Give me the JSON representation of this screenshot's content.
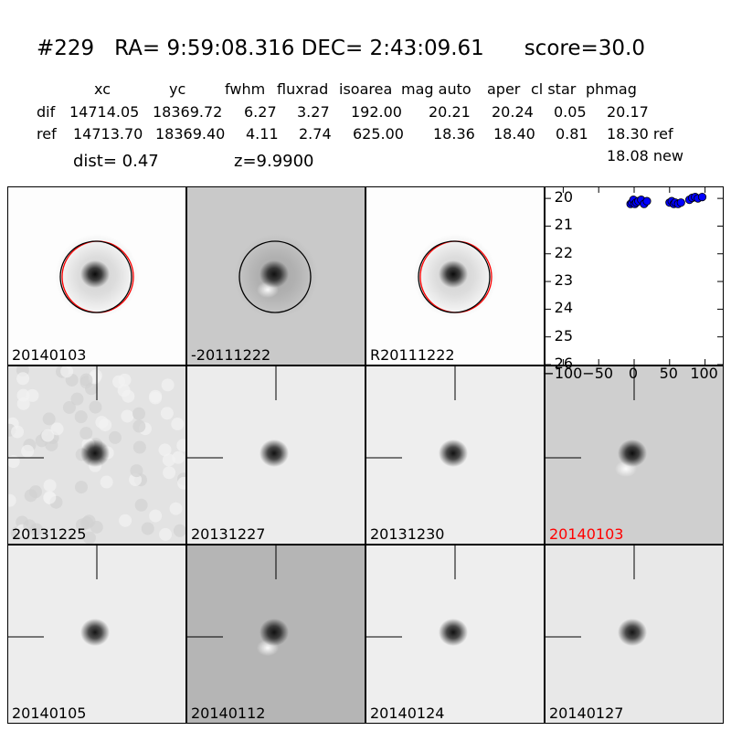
{
  "header": {
    "id": "#229",
    "ra": "RA= 9:59:08.316",
    "dec": "DEC= 2:43:09.61",
    "score": "score=30.0"
  },
  "stats": {
    "columns": [
      "xc",
      "yc",
      "fwhm",
      "fluxrad",
      "isoarea",
      "mag auto",
      "aper",
      "cl star",
      "phmag"
    ],
    "rows": [
      {
        "label": "dif",
        "values": [
          "14714.05",
          "18369.72",
          "6.27",
          "3.27",
          "192.00",
          "20.21",
          "20.24",
          "0.05",
          "20.17"
        ]
      },
      {
        "label": "ref",
        "values": [
          "14713.70",
          "18369.40",
          "4.11",
          "2.74",
          "625.00",
          "18.36",
          "18.40",
          "0.81",
          "18.30 ref"
        ]
      }
    ],
    "extra_phmag": "18.08 new"
  },
  "meta": {
    "dist": "dist=  0.47",
    "z": "z=9.9900"
  },
  "panels": [
    {
      "label": "20140103",
      "bg": "#fdfdfd",
      "blob": "#0a0a0a",
      "circle": true,
      "red_circle": true,
      "crosshair": false,
      "red_label": false,
      "dipole": false
    },
    {
      "label": "-20111222",
      "bg": "#c9c9c9",
      "blob": "#111111",
      "circle": true,
      "red_circle": false,
      "crosshair": false,
      "red_label": false,
      "dipole": true
    },
    {
      "label": "R20111222",
      "bg": "#fdfdfd",
      "blob": "#0a0a0a",
      "circle": true,
      "red_circle": true,
      "crosshair": false,
      "red_label": false,
      "dipole": false
    },
    {
      "label": "20131225",
      "bg": "#e3e3e3",
      "blob": "#111111",
      "circle": false,
      "red_circle": false,
      "crosshair": true,
      "red_label": false,
      "dipole": false,
      "noisy": true
    },
    {
      "label": "20131227",
      "bg": "#ececec",
      "blob": "#111111",
      "circle": false,
      "red_circle": false,
      "crosshair": true,
      "red_label": false,
      "dipole": false
    },
    {
      "label": "20131230",
      "bg": "#eeeeee",
      "blob": "#111111",
      "circle": false,
      "red_circle": false,
      "crosshair": true,
      "red_label": false,
      "dipole": false
    },
    {
      "label": "20140103",
      "bg": "#cfcfcf",
      "blob": "#0d0d0d",
      "circle": false,
      "red_circle": false,
      "crosshair": true,
      "red_label": true,
      "dipole": true
    },
    {
      "label": "20140105",
      "bg": "#ededed",
      "blob": "#151515",
      "circle": false,
      "red_circle": false,
      "crosshair": true,
      "red_label": false,
      "dipole": false
    },
    {
      "label": "20140112",
      "bg": "#b5b5b5",
      "blob": "#111111",
      "circle": false,
      "red_circle": false,
      "crosshair": true,
      "red_label": false,
      "dipole": true
    },
    {
      "label": "20140124",
      "bg": "#eeeeee",
      "blob": "#111111",
      "circle": false,
      "red_circle": false,
      "crosshair": true,
      "red_label": false,
      "dipole": false
    },
    {
      "label": "20140127",
      "bg": "#e8e8e8",
      "blob": "#151515",
      "circle": false,
      "red_circle": false,
      "crosshair": true,
      "red_label": false,
      "dipole": false
    }
  ],
  "chart_data": {
    "type": "scatter",
    "xlim": [
      -125,
      125
    ],
    "ylim": [
      26,
      19.6
    ],
    "y_inverted": true,
    "xticks": [
      -100,
      -50,
      0,
      50,
      100
    ],
    "xtick_labels": [
      "−100",
      "−50",
      "0",
      "50",
      "100"
    ],
    "yticks": [
      20,
      21,
      22,
      23,
      24,
      25,
      26
    ],
    "ytick_labels": [
      "20",
      "21",
      "22",
      "23",
      "24",
      "25",
      "26"
    ],
    "point_color": "#0000ff",
    "x": [
      -5,
      -3,
      -1,
      1,
      3,
      6,
      10,
      14,
      18,
      50,
      53,
      56,
      58,
      62,
      66,
      78,
      82,
      86,
      90,
      96
    ],
    "y": [
      20.2,
      20.15,
      20.05,
      20.2,
      20.15,
      20.1,
      20.05,
      20.2,
      20.1,
      20.15,
      20.1,
      20.2,
      20.15,
      20.2,
      20.15,
      20.05,
      19.98,
      19.95,
      20.0,
      19.95
    ]
  }
}
